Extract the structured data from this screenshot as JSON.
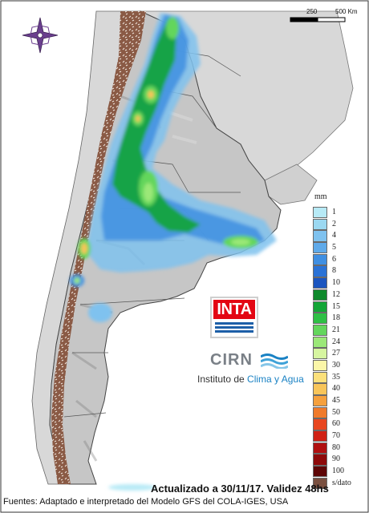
{
  "map": {
    "scale_labels": [
      "250",
      "500 Km"
    ],
    "legend_unit": "mm",
    "legend": [
      {
        "label": "1",
        "color": "#b7eaf6"
      },
      {
        "label": "2",
        "color": "#9bd8f1"
      },
      {
        "label": "4",
        "color": "#7fc2ef"
      },
      {
        "label": "5",
        "color": "#5faaea"
      },
      {
        "label": "6",
        "color": "#3f8fe2"
      },
      {
        "label": "8",
        "color": "#2a72d6"
      },
      {
        "label": "10",
        "color": "#1b55bf"
      },
      {
        "label": "12",
        "color": "#0f8a2c"
      },
      {
        "label": "15",
        "color": "#13a536"
      },
      {
        "label": "18",
        "color": "#2ec045"
      },
      {
        "label": "21",
        "color": "#63d65c"
      },
      {
        "label": "24",
        "color": "#9be878"
      },
      {
        "label": "27",
        "color": "#d6f5a0"
      },
      {
        "label": "30",
        "color": "#fbf6a8"
      },
      {
        "label": "35",
        "color": "#fbe07b"
      },
      {
        "label": "40",
        "color": "#f8c55a"
      },
      {
        "label": "45",
        "color": "#f5a03d"
      },
      {
        "label": "50",
        "color": "#f07a2a"
      },
      {
        "label": "60",
        "color": "#e8461f"
      },
      {
        "label": "70",
        "color": "#d02115"
      },
      {
        "label": "80",
        "color": "#b01010"
      },
      {
        "label": "90",
        "color": "#8e0a0a"
      },
      {
        "label": "100",
        "color": "#5e0606"
      },
      {
        "label": "s/dato",
        "color": "#7a5040"
      }
    ],
    "colors": {
      "land": "#c9c9c9",
      "neighbor_land": "#d8d8d8",
      "andes_nodata": "#8a5a45",
      "border": "#555555",
      "ocean": "#ffffff"
    }
  },
  "logos": {
    "inta": "INTA",
    "cirn": "CIRN",
    "institute_prefix": "Instituto de ",
    "institute_accent": "Clima y Agua"
  },
  "footer": {
    "updated": "Actualizado a 30/11/17. Validez 48hs",
    "sources": "Fuentes: Adaptado e interpretado del Modelo GFS del COLA-IGES, USA"
  }
}
